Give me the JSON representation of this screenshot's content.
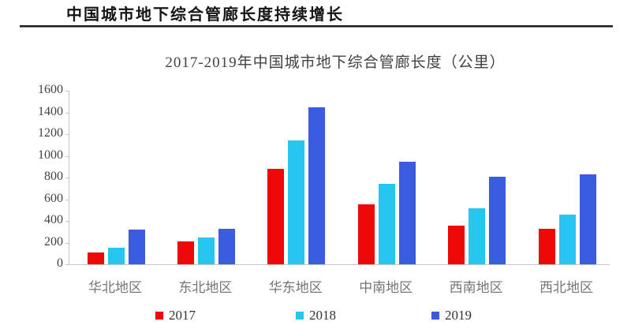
{
  "header": {
    "title": "中国城市地下综合管廊长度持续增长"
  },
  "chart_data": {
    "type": "bar",
    "title": "2017-2019年中国城市地下综合管廊长度（公里）",
    "categories": [
      "华北地区",
      "东北地区",
      "华东地区",
      "中南地区",
      "西南地区",
      "西北地区"
    ],
    "series": [
      {
        "name": "2017",
        "color": "#ee0808",
        "values": [
          110,
          210,
          880,
          555,
          355,
          330
        ]
      },
      {
        "name": "2018",
        "color": "#27c6f0",
        "values": [
          150,
          245,
          1140,
          740,
          515,
          455
        ]
      },
      {
        "name": "2019",
        "color": "#3b5cde",
        "values": [
          320,
          330,
          1450,
          945,
          805,
          830
        ]
      }
    ],
    "ylim": [
      0,
      1600
    ],
    "yticks": [
      0,
      200,
      400,
      600,
      800,
      1000,
      1200,
      1400,
      1600
    ],
    "xlabel": "",
    "ylabel": "",
    "grid": false,
    "legend_position": "bottom",
    "axis_color": "#c6c6c6"
  }
}
